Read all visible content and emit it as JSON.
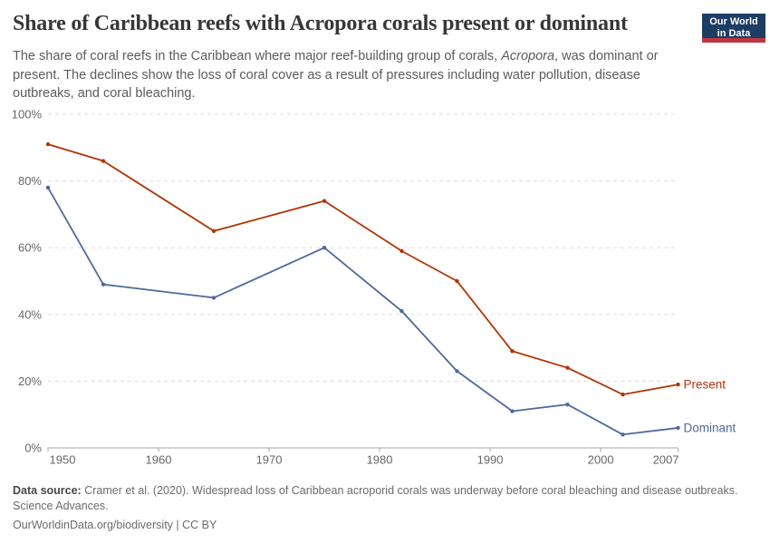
{
  "header": {
    "title": "Share of Caribbean reefs with Acropora corals present or dominant",
    "subtitle_part1": "The share of coral reefs in the Caribbean where major reef-building group of corals, ",
    "subtitle_italic": "Acropora",
    "subtitle_part2": ", was dominant or present. The declines show the loss of coral cover as a result of pressures including water pollution, disease outbreaks, and coral bleaching.",
    "logo": {
      "line1": "Our World",
      "line2": "in Data",
      "bg_color": "#1d3d63",
      "accent_color": "#bf3641"
    }
  },
  "chart_data": {
    "type": "line",
    "title": "Share of Caribbean reefs with Acropora corals present or dominant",
    "x": [
      1950,
      1955,
      1965,
      1975,
      1982,
      1987,
      1992,
      1997,
      2002,
      2007
    ],
    "series": [
      {
        "name": "Present",
        "color": "#B13507",
        "values": [
          91,
          86,
          65,
          74,
          59,
          50,
          29,
          24,
          16,
          19
        ]
      },
      {
        "name": "Dominant",
        "color": "#4C6A9C",
        "values": [
          78,
          49,
          45,
          60,
          41,
          23,
          11,
          13,
          4,
          6
        ]
      }
    ],
    "xlim": [
      1950,
      2007
    ],
    "ylim": [
      0,
      100
    ],
    "xticks": [
      1950,
      1960,
      1970,
      1980,
      1990,
      2000,
      2007
    ],
    "xtick_labels": [
      "1950",
      "1960",
      "1970",
      "1980",
      "1990",
      "2000",
      "2007"
    ],
    "yticks": [
      0,
      20,
      40,
      60,
      80,
      100
    ],
    "ytick_labels": [
      "0%",
      "20%",
      "40%",
      "60%",
      "80%",
      "100%"
    ],
    "grid": "horizontal dashed",
    "legend_position": "end-of-line labels, right"
  },
  "footer": {
    "source_label": "Data source:",
    "source_text": " Cramer et al. (2020). Widespread loss of Caribbean acroporid corals was underway before coral bleaching and disease outbreaks. Science Advances.",
    "url": "OurWorldinData.org/biodiversity",
    "separator": " | ",
    "license": "CC BY"
  }
}
